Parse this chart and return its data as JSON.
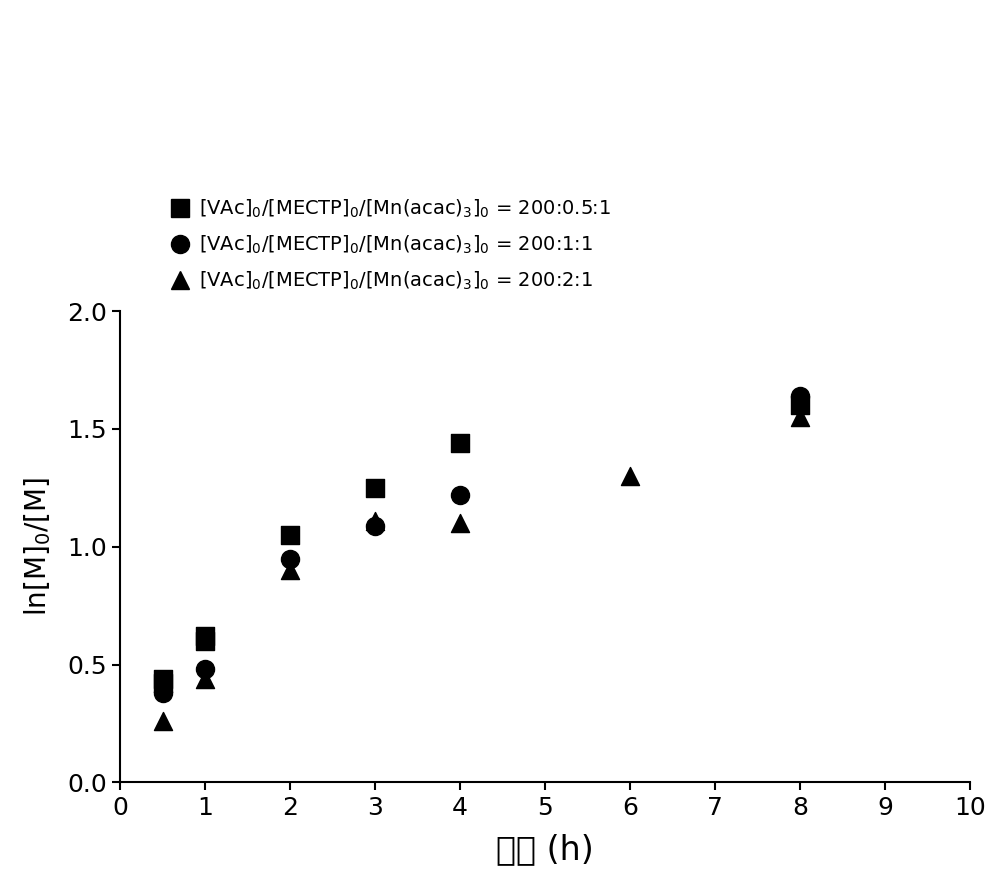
{
  "series": [
    {
      "label": "[VAc]$_0$/[MECTP]$_0$/[Mn(acac)$_3$]$_0$ = 200:0.5:1",
      "marker": "s",
      "x": [
        0.5,
        0.5,
        1.0,
        1.0,
        2.0,
        3.0,
        4.0,
        8.0
      ],
      "y": [
        0.42,
        0.44,
        0.6,
        0.62,
        1.05,
        1.25,
        1.44,
        1.6
      ]
    },
    {
      "label": "[VAc]$_0$/[MECTP]$_0$/[Mn(acac)$_3$]$_0$ = 200:1:1",
      "marker": "o",
      "x": [
        0.5,
        1.0,
        2.0,
        3.0,
        4.0,
        8.0
      ],
      "y": [
        0.38,
        0.48,
        0.95,
        1.09,
        1.22,
        1.64
      ]
    },
    {
      "label": "[VAc]$_0$/[MECTP]$_0$/[Mn(acac)$_3$]$_0$ = 200:2:1",
      "marker": "^",
      "x": [
        0.5,
        0.5,
        1.0,
        2.0,
        3.0,
        4.0,
        6.0,
        8.0
      ],
      "y": [
        0.26,
        0.42,
        0.44,
        0.9,
        1.11,
        1.1,
        1.3,
        1.55
      ]
    }
  ],
  "xlabel_cn": "时间 (h)",
  "ylabel": "ln[M]$_0$/[M]",
  "xlim": [
    0,
    10
  ],
  "ylim": [
    0.0,
    2.0
  ],
  "xticks": [
    0,
    1,
    2,
    3,
    4,
    5,
    6,
    7,
    8,
    9,
    10
  ],
  "yticks": [
    0.0,
    0.5,
    1.0,
    1.5,
    2.0
  ],
  "color": "black",
  "markersize": 13,
  "background_color": "#ffffff",
  "tick_fontsize": 18,
  "label_fontsize": 20,
  "legend_fontsize": 14
}
